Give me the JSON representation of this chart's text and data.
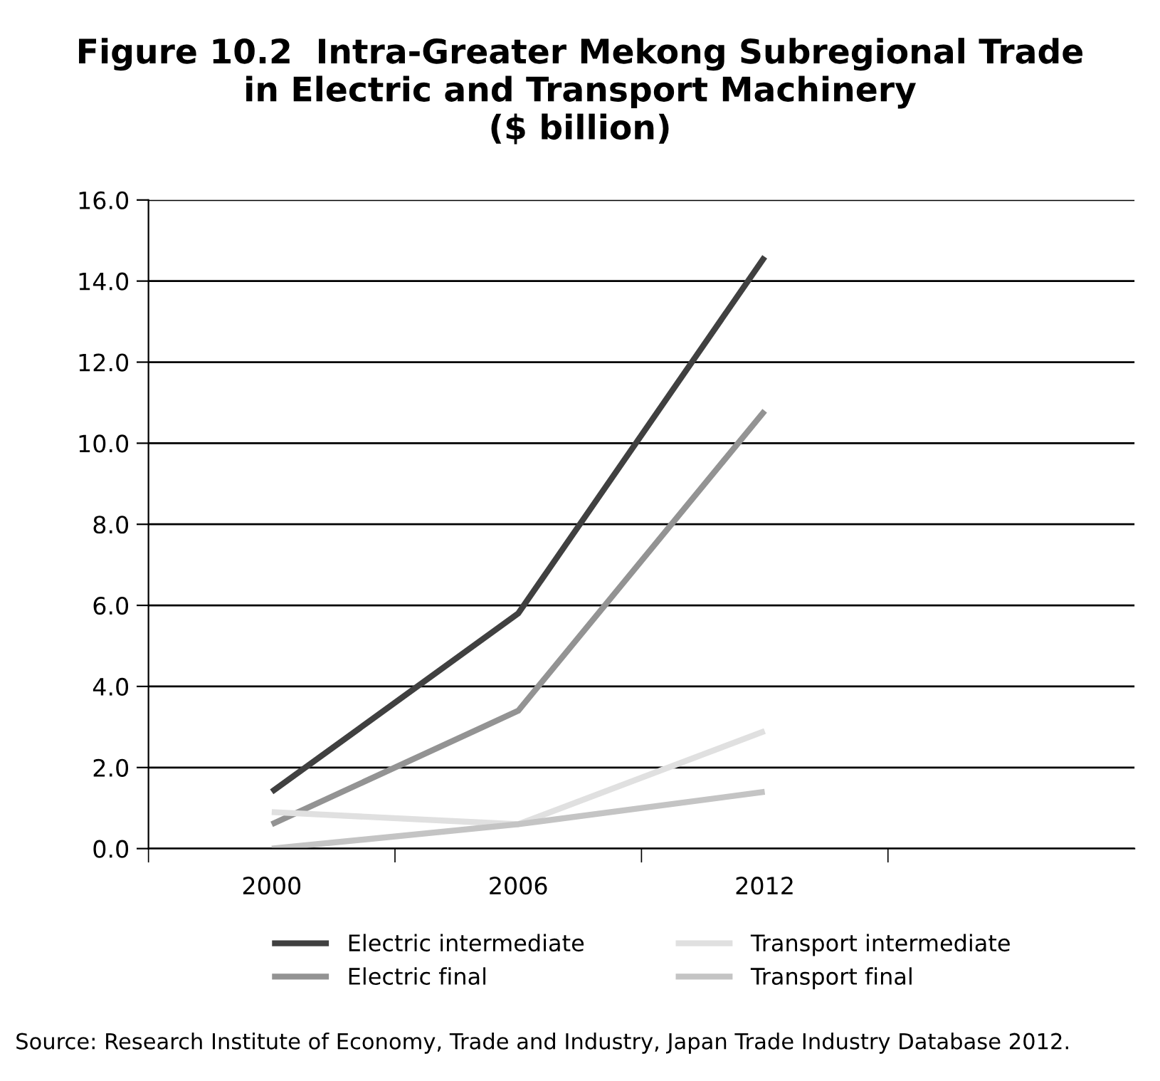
{
  "chart_data": {
    "type": "line",
    "title": "Figure 10.2  Intra-Greater Mekong Subregional Trade\nin Electric and Transport Machinery\n($ billion)",
    "categories": [
      "2000",
      "2006",
      "2012",
      null
    ],
    "series": [
      {
        "name": "Electric intermediate",
        "color": "#404040",
        "values": [
          1.4,
          5.8,
          14.6,
          null
        ]
      },
      {
        "name": "Electric final",
        "color": "#939393",
        "values": [
          0.6,
          3.4,
          10.8,
          null
        ]
      },
      {
        "name": "Transport intermediate",
        "color": "#e0e0e0",
        "values": [
          0.9,
          0.6,
          2.9,
          null
        ]
      },
      {
        "name": "Transport final",
        "color": "#c4c4c4",
        "values": [
          0.0,
          0.6,
          1.4,
          null
        ]
      }
    ],
    "ylim": [
      0,
      16
    ],
    "yticks": [
      {
        "value": 0,
        "label": "0.0"
      },
      {
        "value": 2,
        "label": "2.0"
      },
      {
        "value": 4,
        "label": "4.0"
      },
      {
        "value": 6,
        "label": "6.0"
      },
      {
        "value": 8,
        "label": "8.0"
      },
      {
        "value": 10,
        "label": "10.0"
      },
      {
        "value": 12,
        "label": "12.0"
      },
      {
        "value": 14,
        "label": "14.0"
      },
      {
        "value": 16,
        "label": "16.0"
      }
    ],
    "grid": "y",
    "legend": "bottom",
    "marker": "none",
    "line_style": "solid",
    "annotations": [
      "Source: Research Institute of Economy, Trade and Industry, Japan Trade Industry Database 2012."
    ]
  }
}
